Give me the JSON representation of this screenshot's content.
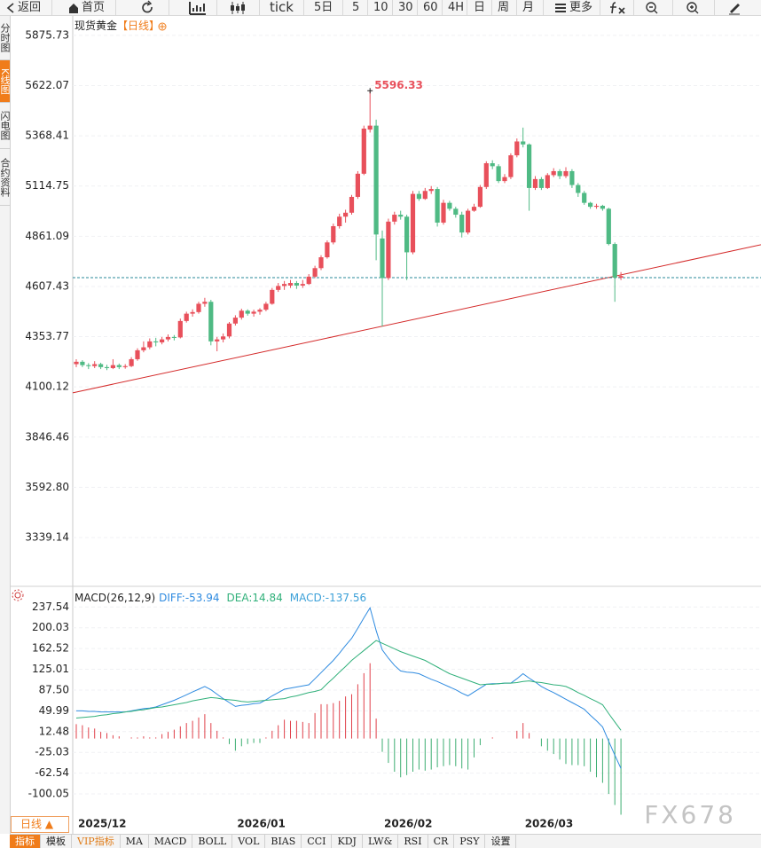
{
  "toolbar": [
    "返回",
    "首页",
    "tick",
    "5日",
    "5",
    "10",
    "30",
    "60",
    "4H",
    "日",
    "周",
    "月",
    "更多"
  ],
  "sidebar": [
    "分时图",
    "K线图",
    "闪电图",
    "合约资料"
  ],
  "period_button": "日线 ▲",
  "indicator_tabs": [
    "指标",
    "模板",
    "VIP指标",
    "MA",
    "MACD",
    "BOLL",
    "VOL",
    "BIAS",
    "CCI",
    "KDJ",
    "LW&",
    "RSI",
    "CR",
    "PSY",
    "设置"
  ],
  "watermark": "FX678",
  "chart_data": [
    {
      "type": "candlestick",
      "title": "现货黄金",
      "subtitle": "【日线】",
      "categories": [
        "2025/12",
        null,
        null,
        null,
        null,
        null,
        null,
        null,
        null,
        null,
        null,
        null,
        null,
        null,
        null,
        null,
        null,
        null,
        null,
        null,
        null,
        null,
        null,
        null,
        null,
        null,
        "2026/01",
        null,
        null,
        null,
        null,
        null,
        null,
        null,
        null,
        null,
        null,
        null,
        null,
        null,
        null,
        null,
        null,
        null,
        null,
        null,
        null,
        null,
        null,
        null,
        "2026/02",
        null,
        null,
        null,
        null,
        null,
        null,
        null,
        null,
        null,
        null,
        null,
        null,
        null,
        null,
        null,
        null,
        null,
        null,
        null,
        null,
        null,
        null,
        "2026/03",
        null,
        null,
        null,
        null,
        null,
        null,
        null,
        null,
        null,
        null,
        null,
        null,
        null,
        null,
        null,
        null
      ],
      "ohlc": [
        [
          4215,
          4240,
          4200,
          4227
        ],
        [
          4227,
          4235,
          4200,
          4210
        ],
        [
          4210,
          4220,
          4190,
          4205
        ],
        [
          4205,
          4230,
          4195,
          4215
        ],
        [
          4215,
          4222,
          4190,
          4200
        ],
        [
          4200,
          4212,
          4185,
          4195
        ],
        [
          4195,
          4240,
          4190,
          4210
        ],
        [
          4210,
          4218,
          4190,
          4200
        ],
        [
          4200,
          4215,
          4192,
          4205
        ],
        [
          4205,
          4250,
          4200,
          4240
        ],
        [
          4240,
          4295,
          4232,
          4285
        ],
        [
          4285,
          4330,
          4275,
          4300
        ],
        [
          4300,
          4345,
          4290,
          4330
        ],
        [
          4330,
          4348,
          4305,
          4325
        ],
        [
          4325,
          4352,
          4315,
          4340
        ],
        [
          4340,
          4365,
          4330,
          4352
        ],
        [
          4352,
          4362,
          4335,
          4350
        ],
        [
          4350,
          4445,
          4345,
          4433
        ],
        [
          4433,
          4480,
          4425,
          4470
        ],
        [
          4470,
          4492,
          4455,
          4478
        ],
        [
          4478,
          4530,
          4470,
          4520
        ],
        [
          4520,
          4550,
          4505,
          4530
        ],
        [
          4530,
          4540,
          4310,
          4330
        ],
        [
          4330,
          4352,
          4280,
          4340
        ],
        [
          4340,
          4370,
          4325,
          4355
        ],
        [
          4355,
          4428,
          4345,
          4420
        ],
        [
          4420,
          4462,
          4410,
          4450
        ],
        [
          4450,
          4495,
          4440,
          4485
        ],
        [
          4485,
          4492,
          4460,
          4470
        ],
        [
          4470,
          4490,
          4455,
          4480
        ],
        [
          4480,
          4498,
          4465,
          4490
        ],
        [
          4490,
          4530,
          4482,
          4520
        ],
        [
          4520,
          4600,
          4515,
          4590
        ],
        [
          4590,
          4625,
          4580,
          4610
        ],
        [
          4610,
          4635,
          4590,
          4620
        ],
        [
          4612,
          4640,
          4600,
          4625
        ],
        [
          4625,
          4635,
          4595,
          4612
        ],
        [
          4612,
          4640,
          4600,
          4620
        ],
        [
          4620,
          4670,
          4615,
          4657
        ],
        [
          4657,
          4712,
          4650,
          4700
        ],
        [
          4700,
          4765,
          4690,
          4755
        ],
        [
          4755,
          4840,
          4748,
          4830
        ],
        [
          4830,
          4925,
          4820,
          4912
        ],
        [
          4912,
          4975,
          4900,
          4960
        ],
        [
          4960,
          4995,
          4930,
          4980
        ],
        [
          4980,
          5070,
          4970,
          5060
        ],
        [
          5060,
          5190,
          5050,
          5177
        ],
        [
          5177,
          5420,
          5170,
          5405
        ],
        [
          5400,
          5596.33,
          5385,
          5420
        ],
        [
          5420,
          5450,
          4740,
          4870
        ],
        [
          4850,
          4890,
          4405,
          4650
        ],
        [
          4650,
          4950,
          4640,
          4935
        ],
        [
          4935,
          4985,
          4920,
          4970
        ],
        [
          4970,
          4990,
          4945,
          4960
        ],
        [
          4960,
          4970,
          4640,
          4780
        ],
        [
          4780,
          5090,
          4770,
          5075
        ],
        [
          5075,
          5090,
          5040,
          5050
        ],
        [
          5050,
          5105,
          5045,
          5090
        ],
        [
          5090,
          5115,
          5075,
          5100
        ],
        [
          5100,
          5110,
          4910,
          4930
        ],
        [
          4930,
          5045,
          4920,
          5030
        ],
        [
          5030,
          5040,
          4990,
          5000
        ],
        [
          5000,
          5010,
          4955,
          4970
        ],
        [
          4970,
          4985,
          4855,
          4880
        ],
        [
          4880,
          5000,
          4870,
          4990
        ],
        [
          4990,
          5025,
          4985,
          5010
        ],
        [
          5010,
          5120,
          5005,
          5110
        ],
        [
          5110,
          5240,
          5100,
          5230
        ],
        [
          5230,
          5245,
          5200,
          5215
        ],
        [
          5215,
          5225,
          5130,
          5140
        ],
        [
          5140,
          5175,
          5130,
          5160
        ],
        [
          5160,
          5280,
          5150,
          5270
        ],
        [
          5270,
          5355,
          5260,
          5340
        ],
        [
          5340,
          5410,
          5310,
          5325
        ],
        [
          5325,
          5330,
          4990,
          5105
        ],
        [
          5105,
          5165,
          5095,
          5150
        ],
        [
          5150,
          5160,
          5095,
          5105
        ],
        [
          5105,
          5180,
          5100,
          5170
        ],
        [
          5170,
          5205,
          5160,
          5190
        ],
        [
          5190,
          5200,
          5150,
          5165
        ],
        [
          5165,
          5210,
          5155,
          5190
        ],
        [
          5190,
          5200,
          5105,
          5120
        ],
        [
          5120,
          5130,
          5060,
          5080
        ],
        [
          5080,
          5090,
          5020,
          5030
        ],
        [
          5030,
          5035,
          5000,
          5010
        ],
        [
          5010,
          5025,
          5000,
          5015
        ],
        [
          5015,
          5020,
          4990,
          5000
        ],
        [
          5000,
          5005,
          4815,
          4822
        ],
        [
          4822,
          4830,
          4530,
          4652
        ],
        [
          4652,
          4680,
          4640,
          4660
        ]
      ],
      "up_color": "#e8505b",
      "down_color": "#4fba84",
      "ylim": [
        3097,
        5974
      ],
      "yticks": [
        5875.73,
        5622.07,
        5368.41,
        5114.75,
        4861.09,
        4607.43,
        4353.77,
        4100.12,
        3846.46,
        {
          "value": 3592.8,
          "label": "3592.80"
        },
        3339.14
      ],
      "grid": true,
      "price_line": 4652,
      "price_line_color": "#2a8a9a",
      "trendline": {
        "color": "#d42a2a",
        "points": [
          [
            0,
            4074
          ],
          [
            89,
            4666
          ]
        ]
      },
      "max_marker_color": "#e8505b"
    },
    {
      "type": "macd",
      "title": "MACD(26,12,9)",
      "series": [
        {
          "name": "DIFF:",
          "color": "#2f8be0",
          "values": [
            50,
            50,
            49,
            49,
            48,
            48,
            48,
            48,
            48,
            50,
            52,
            54,
            55,
            57,
            61,
            65,
            69,
            74,
            79,
            84,
            89,
            94,
            88,
            80,
            72,
            65,
            58,
            60,
            61,
            63,
            64,
            70,
            77,
            83,
            89,
            91,
            93,
            95,
            97,
            108,
            119,
            130,
            141,
            154,
            168,
            181,
            199,
            218,
            236,
            195,
            160,
            145,
            132,
            122,
            120,
            119,
            117,
            112,
            107,
            103,
            98,
            93,
            88,
            82,
            77,
            84,
            91,
            98,
            99,
            99,
            100,
            100,
            108,
            117,
            109,
            102,
            94,
            88,
            83,
            77,
            71,
            65,
            59,
            53,
            42,
            32,
            21,
            -5,
            -30,
            -53.94
          ]
        },
        {
          "name": "DEA:",
          "color": "#30b07a",
          "values": [
            37,
            38,
            39,
            40,
            42,
            43,
            45,
            46,
            48,
            49,
            51,
            52,
            54,
            56,
            57,
            59,
            61,
            63,
            65,
            68,
            70,
            72,
            74,
            73,
            71,
            70,
            69,
            67,
            66,
            67,
            68,
            69,
            70,
            71,
            72,
            75,
            77,
            80,
            83,
            85,
            88,
            99,
            109,
            120,
            130,
            141,
            150,
            159,
            168,
            177,
            172,
            167,
            162,
            157,
            153,
            149,
            145,
            141,
            135,
            129,
            123,
            117,
            113,
            109,
            105,
            101,
            97,
            98,
            98,
            99,
            100,
            100,
            101,
            103,
            104,
            102,
            101,
            99,
            97,
            96,
            94,
            89,
            83,
            78,
            72,
            67,
            61,
            45,
            30,
            14.84
          ]
        },
        {
          "name": "MACD:",
          "color": "#3ba0d8",
          "up_color": "#e0404a",
          "down_color": "#3dae72",
          "values": [
            26,
            24,
            20,
            18,
            12,
            10,
            6,
            4,
            0,
            2,
            2,
            4,
            2,
            2,
            8,
            12,
            16,
            22,
            28,
            32,
            38,
            44,
            28,
            14,
            2,
            -10,
            -22,
            -14,
            -10,
            -8,
            -8,
            2,
            14,
            24,
            34,
            32,
            32,
            30,
            28,
            46,
            62,
            62,
            64,
            68,
            76,
            80,
            98,
            118,
            136,
            36,
            -24,
            -44,
            -60,
            -70,
            -66,
            -60,
            -56,
            -58,
            -56,
            -52,
            -50,
            -48,
            -50,
            -54,
            -56,
            -34,
            -12,
            0,
            2,
            0,
            0,
            0,
            14,
            28,
            10,
            0,
            -14,
            -22,
            -28,
            -38,
            -46,
            -48,
            -48,
            -50,
            -60,
            -70,
            -80,
            -100,
            -120,
            -137.56
          ]
        }
      ],
      "ylim": [
        -140,
        270
      ],
      "yticks": [
        237.54,
        200.03,
        162.52,
        125.01,
        {
          "value": 87.5,
          "label": "87.50"
        },
        49.99,
        12.48,
        -25.03,
        -62.54,
        -100.05
      ],
      "grid": true
    }
  ]
}
